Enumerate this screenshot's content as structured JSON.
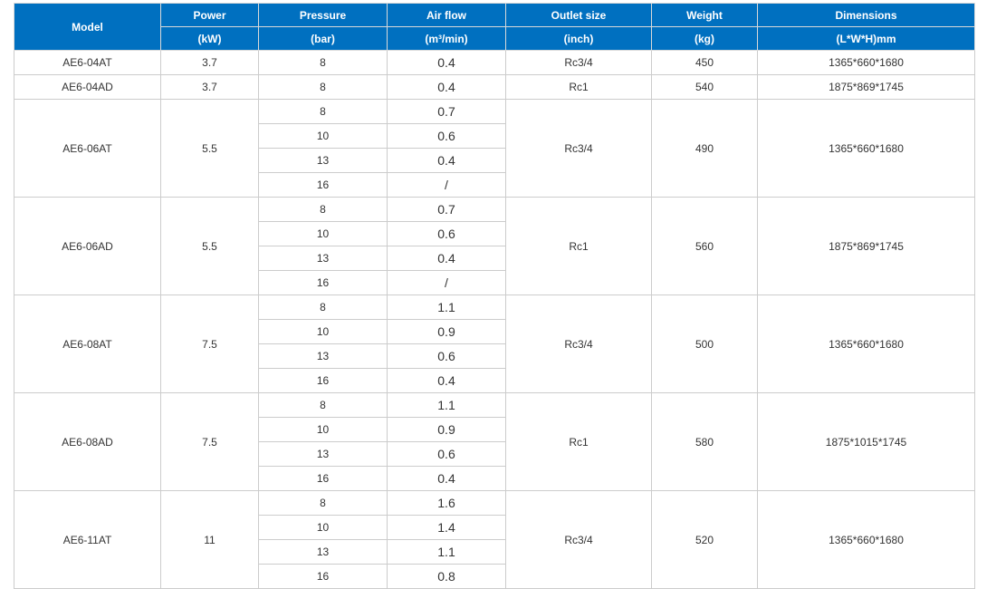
{
  "header": {
    "model": "Model",
    "power": [
      "Power",
      "(kW)"
    ],
    "pressure": [
      "Pressure",
      "(bar)"
    ],
    "airflow": [
      "Air flow",
      "(m³/min)"
    ],
    "outlet": [
      "Outlet size",
      "(inch)"
    ],
    "weight": [
      "Weight",
      "(kg)"
    ],
    "dimensions": [
      "Dimensions",
      "(L*W*H)mm"
    ]
  },
  "models": [
    {
      "model": "AE6-04AT",
      "power": "3.7",
      "rows": [
        {
          "pressure": "8",
          "airflow": "0.4"
        }
      ],
      "outlet": "Rc3/4",
      "weight": "450",
      "dimensions": "1365*660*1680"
    },
    {
      "model": "AE6-04AD",
      "power": "3.7",
      "rows": [
        {
          "pressure": "8",
          "airflow": "0.4"
        }
      ],
      "outlet": "Rc1",
      "weight": "540",
      "dimensions": "1875*869*1745"
    },
    {
      "model": "AE6-06AT",
      "power": "5.5",
      "rows": [
        {
          "pressure": "8",
          "airflow": "0.7"
        },
        {
          "pressure": "10",
          "airflow": "0.6"
        },
        {
          "pressure": "13",
          "airflow": "0.4"
        },
        {
          "pressure": "16",
          "airflow": "/"
        }
      ],
      "outlet": "Rc3/4",
      "weight": "490",
      "dimensions": "1365*660*1680"
    },
    {
      "model": "AE6-06AD",
      "power": "5.5",
      "rows": [
        {
          "pressure": "8",
          "airflow": "0.7"
        },
        {
          "pressure": "10",
          "airflow": "0.6"
        },
        {
          "pressure": "13",
          "airflow": "0.4"
        },
        {
          "pressure": "16",
          "airflow": "/"
        }
      ],
      "outlet": "Rc1",
      "weight": "560",
      "dimensions": "1875*869*1745"
    },
    {
      "model": "AE6-08AT",
      "power": "7.5",
      "rows": [
        {
          "pressure": "8",
          "airflow": "1.1"
        },
        {
          "pressure": "10",
          "airflow": "0.9"
        },
        {
          "pressure": "13",
          "airflow": "0.6"
        },
        {
          "pressure": "16",
          "airflow": "0.4"
        }
      ],
      "outlet": "Rc3/4",
      "weight": "500",
      "dimensions": "1365*660*1680"
    },
    {
      "model": "AE6-08AD",
      "power": "7.5",
      "rows": [
        {
          "pressure": "8",
          "airflow": "1.1"
        },
        {
          "pressure": "10",
          "airflow": "0.9"
        },
        {
          "pressure": "13",
          "airflow": "0.6"
        },
        {
          "pressure": "16",
          "airflow": "0.4"
        }
      ],
      "outlet": "Rc1",
      "weight": "580",
      "dimensions": "1875*1015*1745"
    },
    {
      "model": "AE6-11AT",
      "power": "11",
      "rows": [
        {
          "pressure": "8",
          "airflow": "1.6"
        },
        {
          "pressure": "10",
          "airflow": "1.4"
        },
        {
          "pressure": "13",
          "airflow": "1.1"
        },
        {
          "pressure": "16",
          "airflow": "0.8"
        }
      ],
      "outlet": "Rc3/4",
      "weight": "520",
      "dimensions": "1365*660*1680"
    }
  ]
}
